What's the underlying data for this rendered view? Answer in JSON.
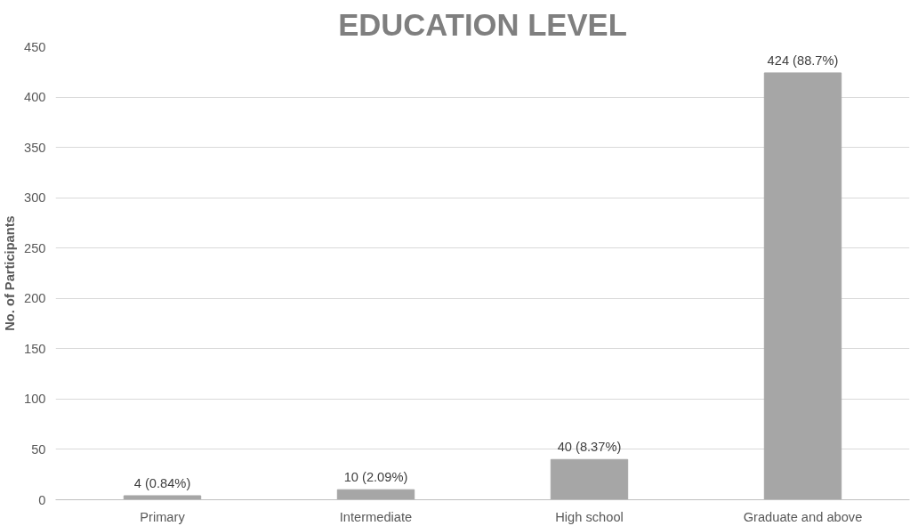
{
  "chart_data": {
    "type": "bar",
    "title": "EDUCATION LEVEL",
    "ylabel": "No. of Participants",
    "categories": [
      "Primary",
      "Intermediate",
      "High school",
      "Graduate and above"
    ],
    "values": [
      4,
      10,
      40,
      424
    ],
    "color": "#a6a6a6",
    "value_labels": [
      "4 (0.84%)",
      "10 (2.09%)",
      "40 (8.37%)",
      "424 (88.7%)"
    ],
    "ylim": [
      0,
      450
    ],
    "yticks": [
      0,
      50,
      100,
      150,
      200,
      250,
      300,
      350,
      400,
      450
    ],
    "grid": "y"
  }
}
